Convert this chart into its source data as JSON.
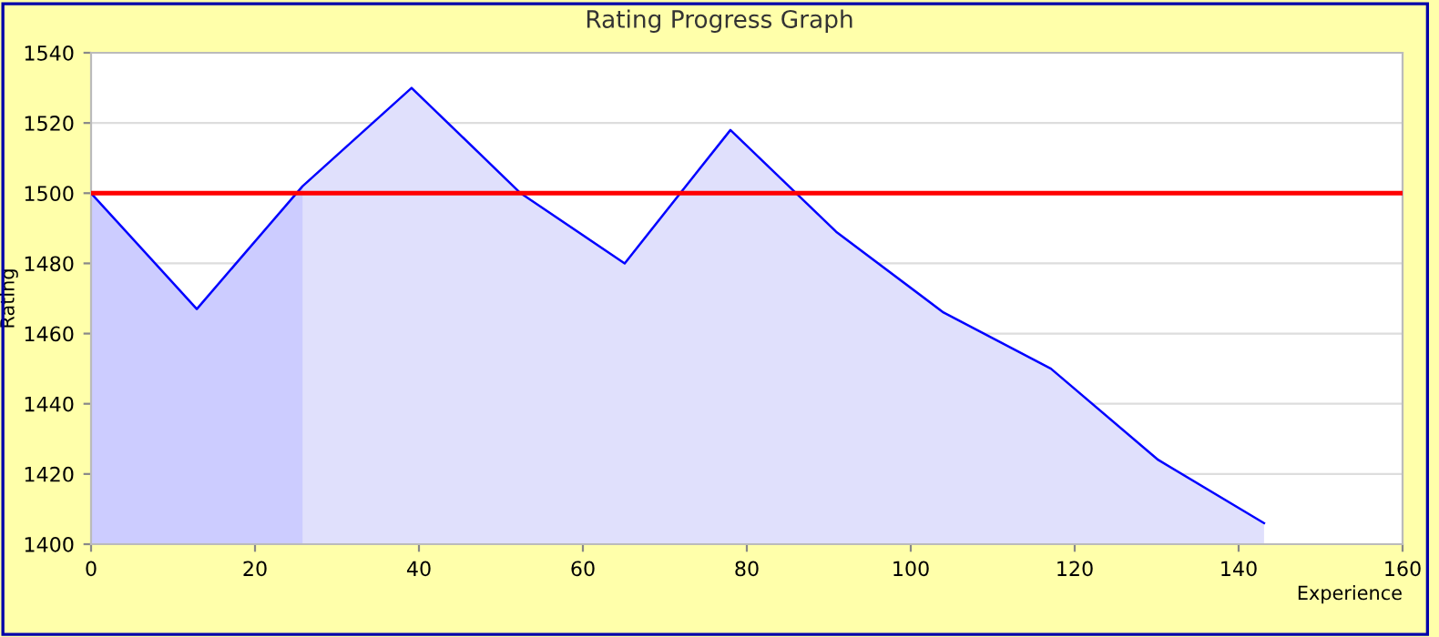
{
  "chart_data": {
    "type": "area",
    "title": "Rating Progress Graph",
    "xlabel": "Experience",
    "ylabel": "Rating",
    "xlim": [
      0,
      160
    ],
    "xticks": [
      0,
      20,
      40,
      60,
      80,
      100,
      120,
      140,
      160
    ],
    "ylim": [
      1400,
      1540
    ],
    "yticks": [
      1400,
      1420,
      1440,
      1460,
      1480,
      1500,
      1520,
      1540
    ],
    "grid": "y",
    "legend": false,
    "series": [
      {
        "color": "#0000ff",
        "x": [
          0,
          12.9,
          25.8,
          39.1,
          52.4,
          65.1,
          78,
          90.9,
          104,
          117.1,
          130.2,
          143.1
        ],
        "values": [
          1500,
          1467,
          1502,
          1530,
          1500,
          1480,
          1518,
          1489,
          1466,
          1450,
          1424,
          1406
        ]
      },
      {
        "color": "#ccccff",
        "x": [
          0,
          12.9,
          25.8
        ],
        "values": [
          1500,
          1467,
          1502
        ]
      }
    ],
    "ref_lines": [
      {
        "axis": "y",
        "value": 1500,
        "label": null,
        "color": "#ff0000"
      }
    ]
  }
}
